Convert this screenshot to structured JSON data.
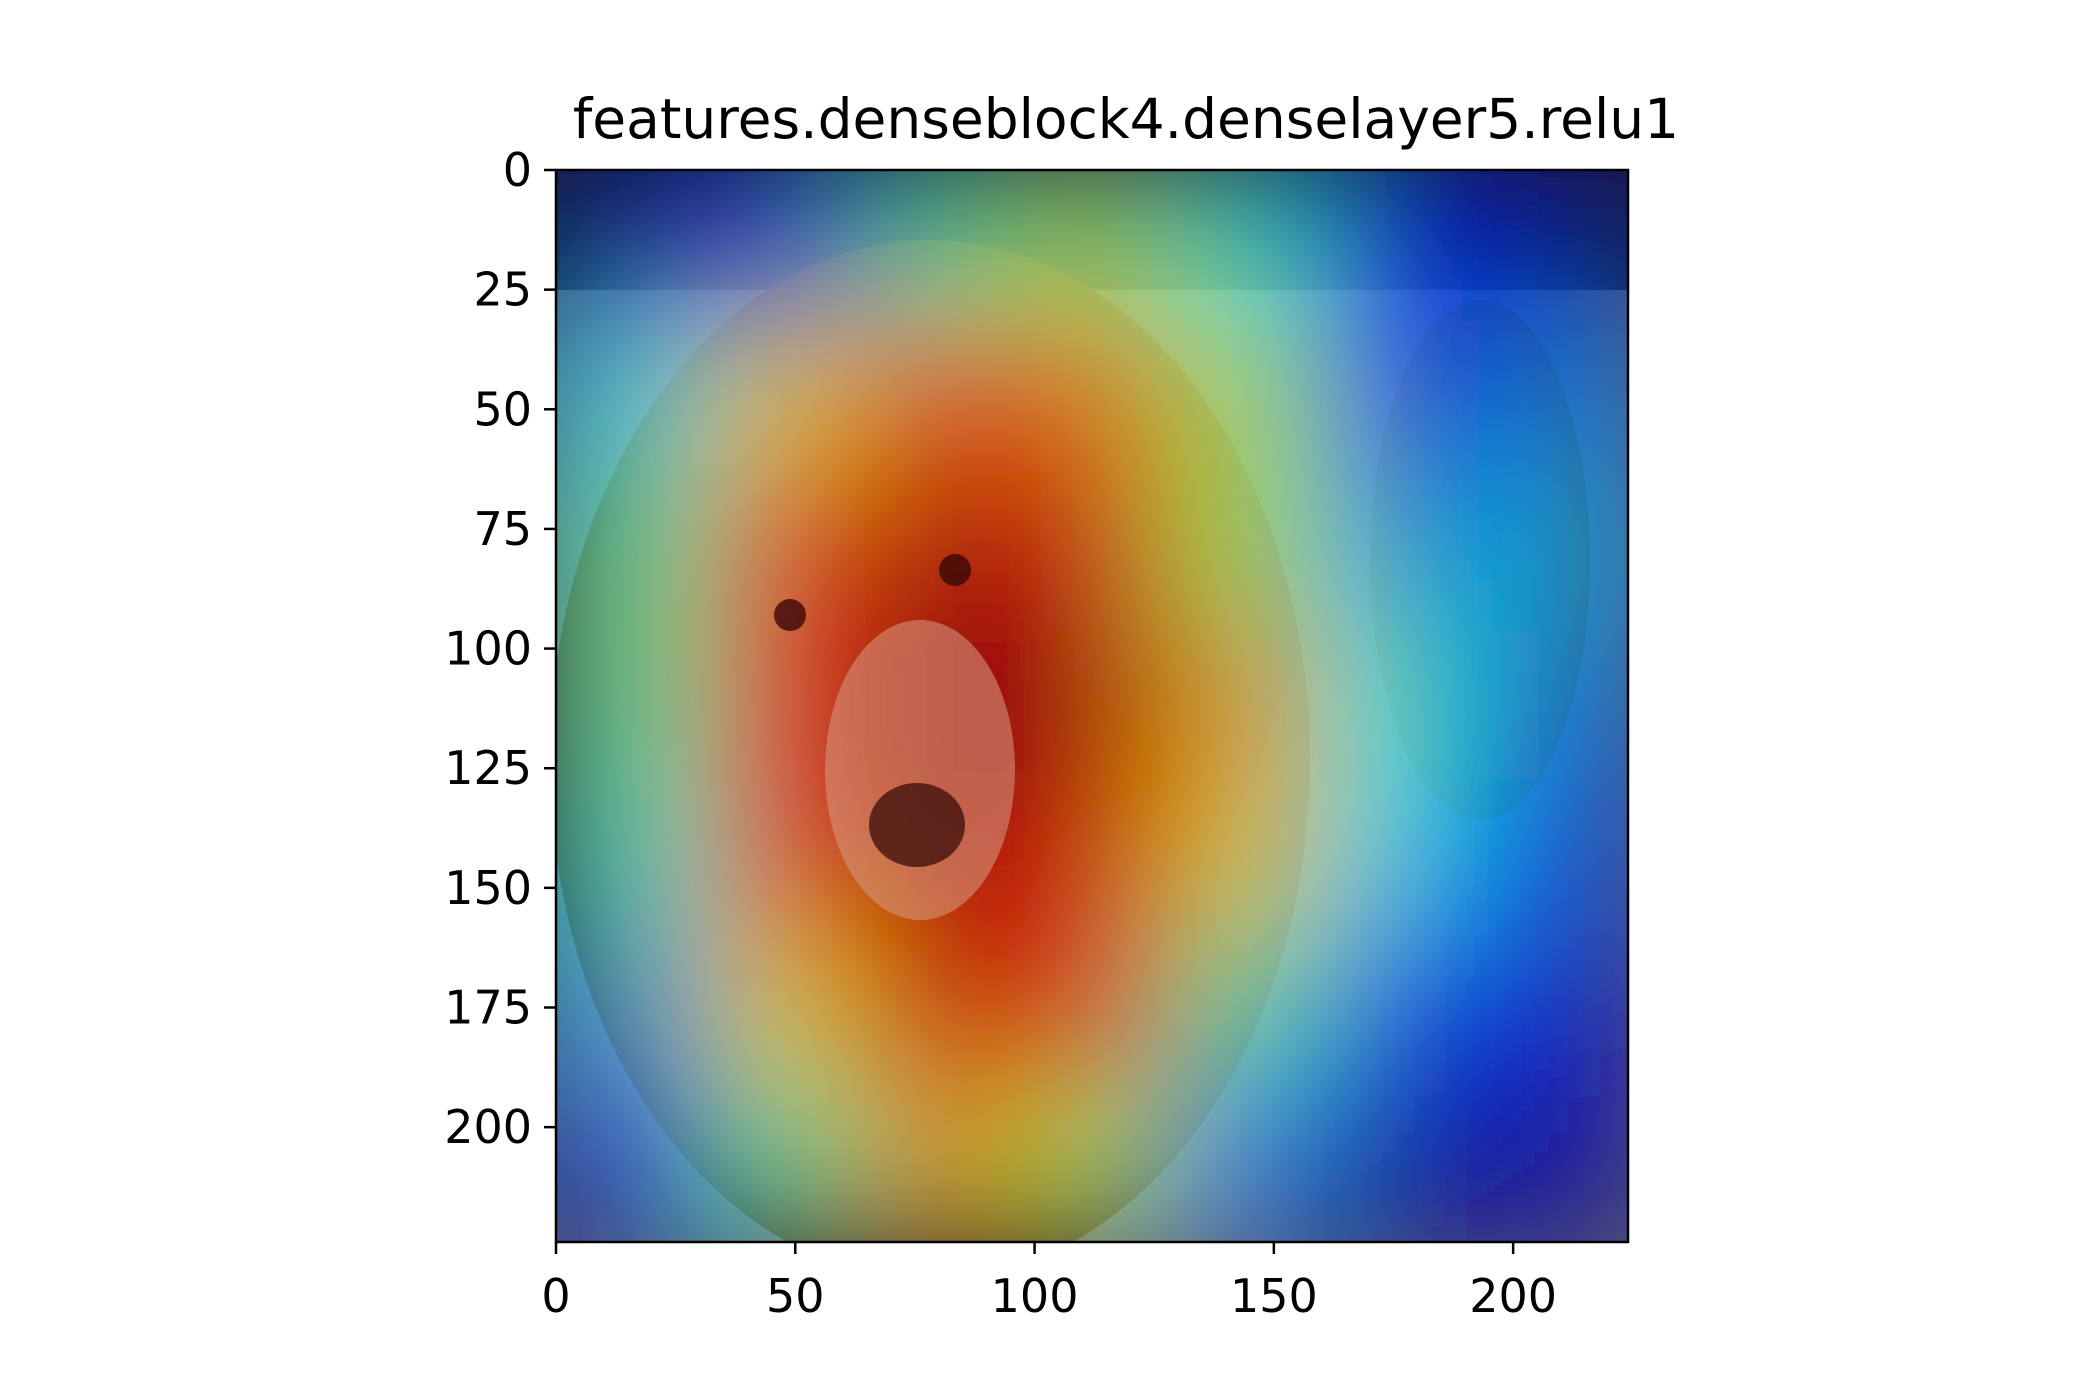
{
  "chart_data": {
    "type": "heatmap",
    "title": "features.denseblock4.denselayer5.relu1",
    "image_size": [
      224,
      224
    ],
    "xlim": [
      0,
      224
    ],
    "ylim": [
      224,
      0
    ],
    "x_ticks": [
      0,
      50,
      100,
      150,
      200
    ],
    "y_ticks": [
      0,
      25,
      50,
      75,
      100,
      125,
      150,
      175,
      200
    ],
    "x_tick_labels": [
      "0",
      "50",
      "100",
      "150",
      "200"
    ],
    "y_tick_labels": [
      "0",
      "25",
      "50",
      "75",
      "100",
      "125",
      "150",
      "175",
      "200"
    ],
    "xlabel": "",
    "ylabel": "",
    "colormap": "jet",
    "overlay": "bear photograph with semi-transparent Grad-CAM heatmap",
    "activation_grid_7x7": [
      [
        0.05,
        0.2,
        0.45,
        0.55,
        0.4,
        0.15,
        0.05
      ],
      [
        0.35,
        0.65,
        0.8,
        0.75,
        0.55,
        0.2,
        0.25
      ],
      [
        0.45,
        0.8,
        0.95,
        0.9,
        0.55,
        0.3,
        0.3
      ],
      [
        0.45,
        0.85,
        1.0,
        0.95,
        0.7,
        0.4,
        0.25
      ],
      [
        0.4,
        0.8,
        0.95,
        0.9,
        0.65,
        0.35,
        0.2
      ],
      [
        0.3,
        0.65,
        0.9,
        0.8,
        0.45,
        0.2,
        0.1
      ],
      [
        0.1,
        0.45,
        0.7,
        0.55,
        0.25,
        0.05,
        0.05
      ]
    ],
    "grid": false
  }
}
